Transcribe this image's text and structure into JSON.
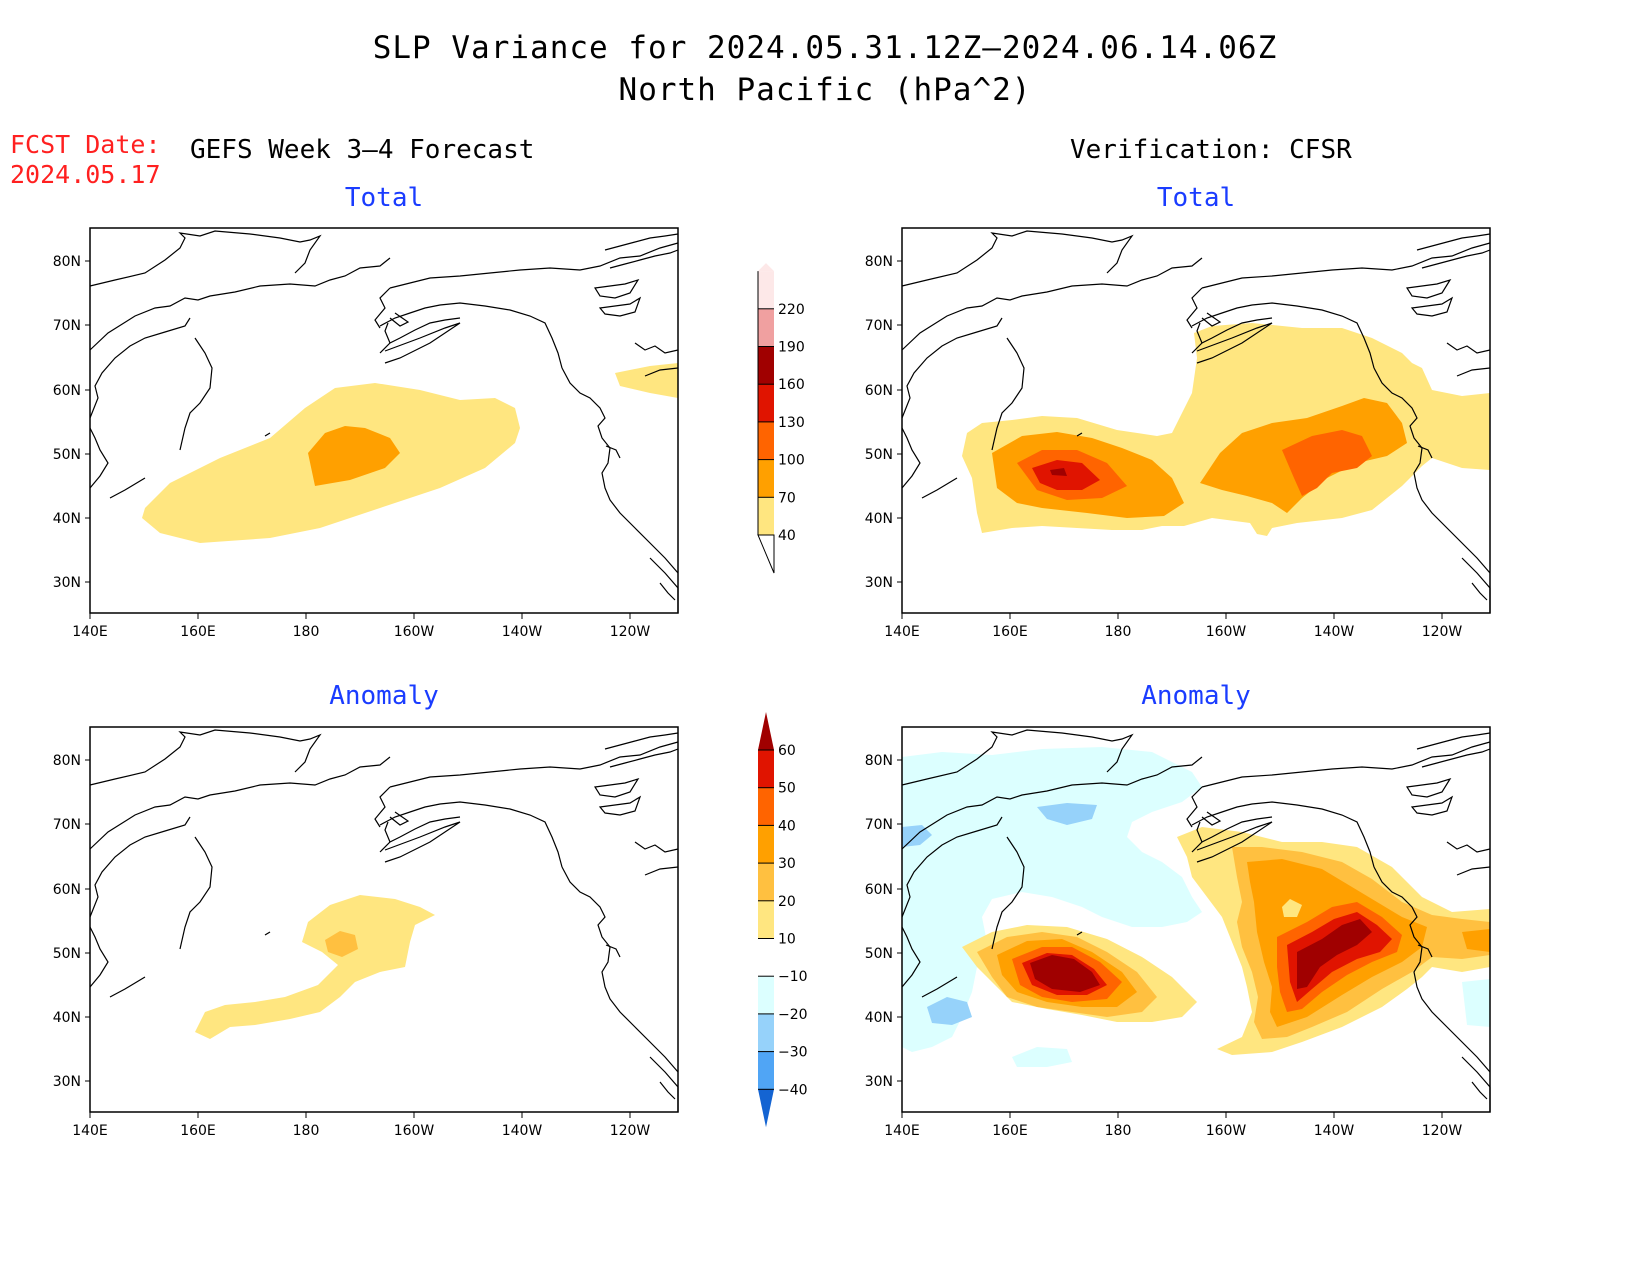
{
  "header": {
    "title_line1": "SLP Variance for 2024.05.31.12Z–2024.06.14.06Z",
    "title_line2": "North Pacific (hPa^2)",
    "fcst_label": "FCST Date:",
    "fcst_date": "2024.05.17"
  },
  "columns": {
    "left": "GEFS Week 3–4 Forecast",
    "right": "Verification: CFSR"
  },
  "panels": [
    {
      "id": "fcst-total",
      "title": "Total"
    },
    {
      "id": "verif-total",
      "title": "Total"
    },
    {
      "id": "fcst-anom",
      "title": "Anomaly"
    },
    {
      "id": "verif-anom",
      "title": "Anomaly"
    }
  ],
  "axes": {
    "lat_ticks": [
      "80N",
      "70N",
      "60N",
      "50N",
      "40N",
      "30N"
    ],
    "lon_ticks": [
      "140E",
      "160E",
      "180",
      "160W",
      "140W",
      "120W"
    ]
  },
  "colorbar_total": {
    "levels": [
      "40",
      "70",
      "100",
      "130",
      "160",
      "190",
      "220"
    ],
    "colors": [
      "#ffe680",
      "#ffa000",
      "#ff6400",
      "#e01400",
      "#a00000",
      "#f0a0a0",
      "#fde8e8"
    ]
  },
  "colorbar_anomaly": {
    "levels": [
      "60",
      "50",
      "40",
      "30",
      "20",
      "10",
      "−10",
      "−20",
      "−30",
      "−40"
    ],
    "colors": [
      "#a00000",
      "#e01400",
      "#ff6400",
      "#ffa000",
      "#ffc040",
      "#ffe680",
      "#ffffff",
      "#dcffff",
      "#96d2fa",
      "#50a5f5",
      "#1e6eeb",
      "#1464d2"
    ]
  }
}
